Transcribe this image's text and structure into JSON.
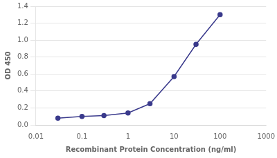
{
  "chart_data": {
    "type": "line",
    "x": [
      0.03,
      0.1,
      0.3,
      1.0,
      3.0,
      10.0,
      30.0,
      100.0
    ],
    "values": [
      0.08,
      0.1,
      0.11,
      0.14,
      0.25,
      0.57,
      0.95,
      1.3
    ],
    "color": "#3a3a8c",
    "marker": "circle",
    "xlabel": "Recombinant Protein Concentration (ng/ml)",
    "ylabel": "OD 450",
    "log": "x",
    "xlim": [
      0.01,
      1000
    ],
    "ylim": [
      0.0,
      1.4
    ],
    "xticks": [
      0.01,
      0.1,
      1,
      10,
      100,
      1000
    ],
    "yticks": [
      {
        "value": 0.0,
        "label": "0.0"
      },
      0.2,
      0.4,
      0.6,
      0.8,
      {
        "value": 1.0,
        "label": "1.0"
      },
      1.2,
      1.4
    ],
    "grid": "y"
  }
}
